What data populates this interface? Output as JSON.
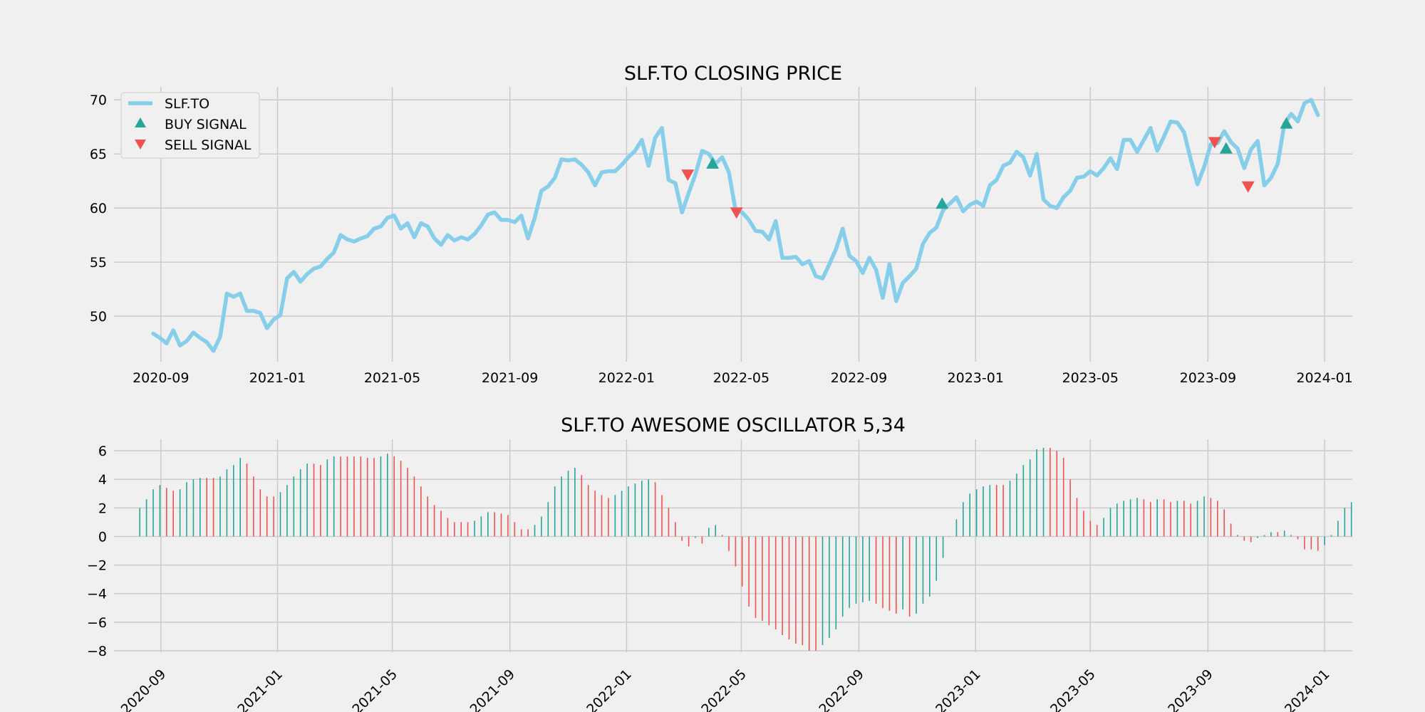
{
  "colors": {
    "price": "#87ceeb",
    "buy": "#26a69a",
    "sell": "#ef5350",
    "grid": "#cbcbcb",
    "background": "#f0f0f0"
  },
  "chart_data": [
    {
      "type": "line",
      "title": "SLF.TO CLOSING PRICE",
      "xlabel": "",
      "ylabel": "",
      "x_ticks": [
        "2020-09",
        "2021-01",
        "2021-05",
        "2021-09",
        "2022-01",
        "2022-05",
        "2022-09",
        "2023-01",
        "2023-05",
        "2023-09",
        "2024-01"
      ],
      "y_ticks": [
        50,
        55,
        60,
        65,
        70
      ],
      "ylim": [
        45.8,
        71.2
      ],
      "xlim": [
        "2020-07-14",
        "2024-01-30"
      ],
      "grid": true,
      "legend": {
        "placement": "top-left",
        "entries": [
          "SLF.TO",
          "BUY SIGNAL",
          "SELL SIGNAL"
        ]
      },
      "series": [
        {
          "name": "SLF.TO",
          "frequency": "weekly",
          "start": "2020-08-24",
          "values": [
            48.4,
            48.0,
            47.5,
            48.7,
            47.3,
            47.7,
            48.5,
            48.0,
            47.6,
            46.8,
            48.1,
            52.1,
            51.8,
            52.1,
            50.5,
            50.5,
            50.3,
            48.9,
            49.7,
            50.1,
            53.5,
            54.1,
            53.2,
            53.9,
            54.4,
            54.6,
            55.3,
            55.9,
            57.5,
            57.1,
            56.9,
            57.2,
            57.4,
            58.1,
            58.3,
            59.1,
            59.3,
            58.1,
            58.6,
            57.3,
            58.6,
            58.3,
            57.2,
            56.6,
            57.5,
            57.0,
            57.3,
            57.1,
            57.6,
            58.4,
            59.4,
            59.6,
            58.9,
            58.9,
            58.7,
            59.3,
            57.2,
            59.1,
            61.6,
            62.0,
            62.8,
            64.5,
            64.4,
            64.5,
            64.0,
            63.3,
            62.1,
            63.3,
            63.4,
            63.4,
            64.0,
            64.7,
            65.3,
            66.3,
            63.9,
            66.5,
            67.4,
            62.6,
            62.3,
            59.6,
            61.4,
            63.1,
            65.3,
            65.0,
            64.1,
            64.7,
            63.3,
            59.8,
            59.6,
            58.9,
            57.9,
            57.8,
            57.1,
            58.8,
            55.4,
            55.4,
            55.5,
            54.8,
            55.1,
            53.7,
            53.5,
            54.8,
            56.2,
            58.1,
            55.6,
            55.1,
            54.0,
            55.4,
            54.3,
            51.7,
            54.8,
            51.4,
            53.1,
            53.7,
            54.4,
            56.7,
            57.7,
            58.2,
            59.8,
            60.4,
            61.0,
            59.7,
            60.3,
            60.6,
            60.2,
            62.1,
            62.6,
            63.9,
            64.2,
            65.2,
            64.7,
            63.0,
            65.0,
            60.8,
            60.2,
            60.0,
            61.0,
            61.6,
            62.8,
            62.9,
            63.4,
            63.0,
            63.7,
            64.6,
            63.6,
            66.3,
            66.3,
            65.2,
            66.3,
            67.4,
            65.3,
            66.6,
            68.0,
            67.9,
            67.0,
            64.5,
            62.2,
            63.8,
            65.9,
            66.0,
            67.1,
            66.1,
            65.5,
            63.7,
            65.4,
            66.2,
            62.1,
            62.8,
            64.1,
            67.8,
            68.7,
            68.0,
            69.7,
            70.0,
            68.6
          ]
        },
        {
          "name": "BUY SIGNAL",
          "points": [
            {
              "x": "2022-04-01",
              "y": 64.1
            },
            {
              "x": "2022-11-27",
              "y": 60.4
            },
            {
              "x": "2023-09-20",
              "y": 65.5
            },
            {
              "x": "2023-11-22",
              "y": 67.8
            }
          ]
        },
        {
          "name": "SELL SIGNAL",
          "points": [
            {
              "x": "2022-03-06",
              "y": 63.1
            },
            {
              "x": "2022-04-26",
              "y": 59.6
            },
            {
              "x": "2023-09-08",
              "y": 66.1
            },
            {
              "x": "2023-10-13",
              "y": 62.0
            }
          ]
        }
      ]
    },
    {
      "type": "bar",
      "title": "SLF.TO AWESOME OSCILLATOR 5,34",
      "xlabel": "",
      "ylabel": "",
      "x_ticks": [
        "2020-09",
        "2021-01",
        "2021-05",
        "2021-09",
        "2022-01",
        "2022-05",
        "2022-09",
        "2023-01",
        "2023-05",
        "2023-09",
        "2024-01"
      ],
      "y_ticks": [
        -8,
        -6,
        -4,
        -2,
        0,
        2,
        4,
        6
      ],
      "ylim": [
        -8.1,
        6.8
      ],
      "xlim": [
        "2020-07-14",
        "2024-01-30"
      ],
      "grid": true,
      "series": [
        {
          "name": "",
          "frequency": "weekly",
          "start": "2020-08-10",
          "values": [
            2.0,
            2.6,
            3.3,
            3.6,
            3.4,
            3.2,
            3.3,
            3.8,
            4.0,
            4.1,
            4.1,
            4.1,
            4.2,
            4.7,
            5.0,
            5.5,
            5.1,
            4.2,
            3.3,
            2.8,
            2.8,
            3.1,
            3.6,
            4.2,
            4.7,
            5.1,
            5.1,
            5.0,
            5.4,
            5.6,
            5.6,
            5.6,
            5.6,
            5.6,
            5.5,
            5.5,
            5.6,
            5.8,
            5.6,
            5.3,
            4.8,
            4.2,
            3.5,
            2.8,
            2.2,
            1.8,
            1.3,
            1.0,
            1.0,
            1.0,
            1.1,
            1.4,
            1.7,
            1.7,
            1.6,
            1.5,
            1.0,
            0.5,
            0.5,
            0.8,
            1.4,
            2.4,
            3.5,
            4.2,
            4.6,
            4.8,
            4.3,
            3.6,
            3.2,
            2.9,
            2.7,
            2.9,
            3.2,
            3.5,
            3.7,
            3.9,
            4.0,
            3.8,
            2.9,
            2.0,
            1.0,
            -0.3,
            -0.7,
            -0.1,
            -0.5,
            0.6,
            0.8,
            0.1,
            -1.0,
            -2.1,
            -3.5,
            -4.9,
            -5.7,
            -5.9,
            -6.2,
            -6.5,
            -6.9,
            -7.2,
            -7.5,
            -7.6,
            -8.0,
            -8.0,
            -7.6,
            -7.1,
            -6.5,
            -5.6,
            -5.0,
            -4.7,
            -4.6,
            -4.5,
            -4.7,
            -5.0,
            -5.2,
            -5.4,
            -5.1,
            -5.6,
            -5.4,
            -4.7,
            -4.2,
            -3.1,
            -1.5,
            0.0,
            1.2,
            2.4,
            3.0,
            3.3,
            3.5,
            3.6,
            3.6,
            3.6,
            3.9,
            4.4,
            5.0,
            5.4,
            6.1,
            6.2,
            6.2,
            6.0,
            5.5,
            4.0,
            2.7,
            1.8,
            1.1,
            0.8,
            1.3,
            2.0,
            2.3,
            2.5,
            2.6,
            2.7,
            2.6,
            2.4,
            2.6,
            2.6,
            2.4,
            2.5,
            2.5,
            2.3,
            2.5,
            2.8,
            2.7,
            2.5,
            1.9,
            0.9,
            0.1,
            -0.3,
            -0.4,
            -0.1,
            0.1,
            0.3,
            0.3,
            0.4,
            0.1,
            -0.2,
            -0.9,
            -0.9,
            -1.0,
            -0.6,
            0.1,
            1.1,
            2.0,
            2.4
          ]
        }
      ]
    }
  ]
}
